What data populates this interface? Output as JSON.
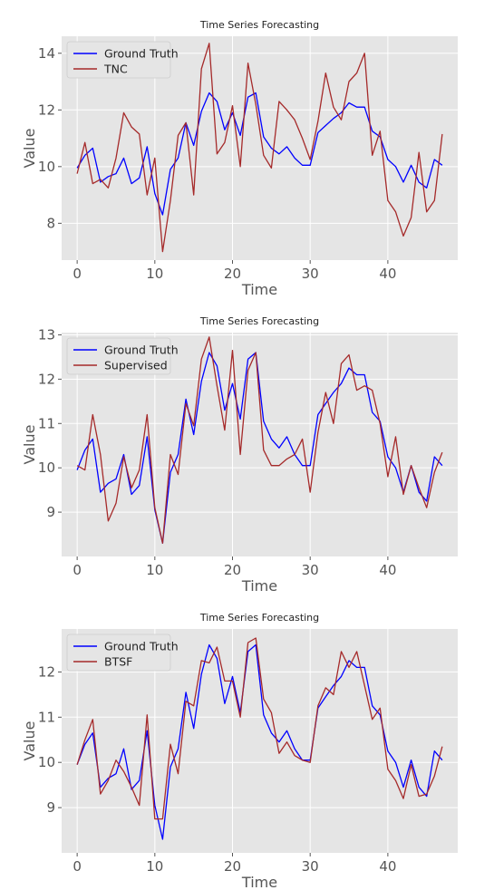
{
  "colors": {
    "ground_truth": "#0000ff",
    "prediction": "#a52a2a",
    "plot_bg": "#e5e5e5",
    "grid": "#ffffff"
  },
  "chart_data": [
    {
      "type": "line",
      "title": "Time Series Forecasting",
      "xlabel": "Time",
      "ylabel": "Value",
      "xlim": [
        -2,
        49
      ],
      "ylim": [
        6.7,
        14.6
      ],
      "xticks": [
        0,
        10,
        20,
        30,
        40
      ],
      "yticks": [
        8,
        10,
        12,
        14
      ],
      "grid": true,
      "legend": "top-left",
      "x": [
        0,
        1,
        2,
        3,
        4,
        5,
        6,
        7,
        8,
        9,
        10,
        11,
        12,
        13,
        14,
        15,
        16,
        17,
        18,
        19,
        20,
        21,
        22,
        23,
        24,
        25,
        26,
        27,
        28,
        29,
        30,
        31,
        32,
        33,
        34,
        35,
        36,
        37,
        38,
        39,
        40,
        41,
        42,
        43,
        44,
        45,
        46,
        47
      ],
      "series": [
        {
          "name": "Ground Truth",
          "color": "#0000ff",
          "values": [
            9.95,
            10.4,
            10.65,
            9.45,
            9.65,
            9.75,
            10.3,
            9.4,
            9.6,
            10.7,
            9.05,
            8.3,
            9.9,
            10.3,
            11.55,
            10.75,
            11.95,
            12.6,
            12.3,
            11.3,
            11.9,
            11.1,
            12.45,
            12.6,
            11.05,
            10.65,
            10.45,
            10.7,
            10.3,
            10.05,
            10.05,
            11.2,
            11.45,
            11.7,
            11.9,
            12.25,
            12.1,
            12.1,
            11.25,
            11.05,
            10.25,
            10.0,
            9.45,
            10.05,
            9.45,
            9.25,
            10.25,
            10.05
          ]
        },
        {
          "name": "TNC",
          "color": "#a52a2a",
          "values": [
            9.75,
            10.85,
            9.4,
            9.55,
            9.25,
            10.3,
            11.9,
            11.4,
            11.15,
            9.0,
            10.3,
            7.0,
            8.8,
            11.1,
            11.55,
            9.0,
            13.45,
            14.35,
            10.45,
            10.85,
            12.15,
            10.0,
            13.65,
            12.2,
            10.4,
            9.95,
            12.3,
            12.0,
            11.65,
            11.0,
            10.25,
            11.6,
            13.3,
            12.1,
            11.65,
            13.0,
            13.3,
            14.0,
            10.4,
            11.25,
            8.8,
            8.4,
            7.55,
            8.2,
            10.5,
            8.4,
            8.8,
            11.15
          ]
        }
      ]
    },
    {
      "type": "line",
      "title": "Time Series Forecasting",
      "xlabel": "Time",
      "ylabel": "Value",
      "xlim": [
        -2,
        49
      ],
      "ylim": [
        8.0,
        13.05
      ],
      "xticks": [
        0,
        10,
        20,
        30,
        40
      ],
      "yticks": [
        9,
        10,
        11,
        12,
        13
      ],
      "grid": true,
      "legend": "top-left",
      "x": [
        0,
        1,
        2,
        3,
        4,
        5,
        6,
        7,
        8,
        9,
        10,
        11,
        12,
        13,
        14,
        15,
        16,
        17,
        18,
        19,
        20,
        21,
        22,
        23,
        24,
        25,
        26,
        27,
        28,
        29,
        30,
        31,
        32,
        33,
        34,
        35,
        36,
        37,
        38,
        39,
        40,
        41,
        42,
        43,
        44,
        45,
        46,
        47
      ],
      "series": [
        {
          "name": "Ground Truth",
          "color": "#0000ff",
          "values": [
            9.95,
            10.4,
            10.65,
            9.45,
            9.65,
            9.75,
            10.3,
            9.4,
            9.6,
            10.7,
            9.05,
            8.3,
            9.9,
            10.3,
            11.55,
            10.75,
            11.95,
            12.6,
            12.3,
            11.3,
            11.9,
            11.1,
            12.45,
            12.6,
            11.05,
            10.65,
            10.45,
            10.7,
            10.3,
            10.05,
            10.05,
            11.2,
            11.45,
            11.7,
            11.9,
            12.25,
            12.1,
            12.1,
            11.25,
            11.05,
            10.25,
            10.0,
            9.45,
            10.05,
            9.45,
            9.25,
            10.25,
            10.05
          ]
        },
        {
          "name": "Supervised",
          "color": "#a52a2a",
          "values": [
            10.05,
            9.95,
            11.2,
            10.3,
            8.8,
            9.2,
            10.25,
            9.55,
            9.95,
            11.2,
            9.1,
            8.3,
            10.3,
            9.85,
            11.45,
            10.95,
            12.45,
            12.95,
            11.85,
            10.85,
            12.65,
            10.3,
            12.2,
            12.6,
            10.4,
            10.05,
            10.05,
            10.2,
            10.3,
            10.65,
            9.45,
            10.8,
            11.7,
            11.0,
            12.35,
            12.55,
            11.75,
            11.85,
            11.75,
            11.0,
            9.8,
            10.7,
            9.4,
            10.05,
            9.55,
            9.1,
            9.9,
            10.35
          ]
        }
      ]
    },
    {
      "type": "line",
      "title": "Time Series Forecasting",
      "xlabel": "Time",
      "ylabel": "Value",
      "xlim": [
        -2,
        49
      ],
      "ylim": [
        8.0,
        12.95
      ],
      "xticks": [
        0,
        10,
        20,
        30,
        40
      ],
      "yticks": [
        9,
        10,
        11,
        12
      ],
      "grid": true,
      "legend": "top-left",
      "x": [
        0,
        1,
        2,
        3,
        4,
        5,
        6,
        7,
        8,
        9,
        10,
        11,
        12,
        13,
        14,
        15,
        16,
        17,
        18,
        19,
        20,
        21,
        22,
        23,
        24,
        25,
        26,
        27,
        28,
        29,
        30,
        31,
        32,
        33,
        34,
        35,
        36,
        37,
        38,
        39,
        40,
        41,
        42,
        43,
        44,
        45,
        46,
        47
      ],
      "series": [
        {
          "name": "Ground Truth",
          "color": "#0000ff",
          "values": [
            9.95,
            10.4,
            10.65,
            9.45,
            9.65,
            9.75,
            10.3,
            9.4,
            9.6,
            10.7,
            9.05,
            8.3,
            9.9,
            10.3,
            11.55,
            10.75,
            11.95,
            12.6,
            12.3,
            11.3,
            11.9,
            11.1,
            12.45,
            12.6,
            11.05,
            10.65,
            10.45,
            10.7,
            10.3,
            10.05,
            10.05,
            11.2,
            11.45,
            11.7,
            11.9,
            12.25,
            12.1,
            12.1,
            11.25,
            11.05,
            10.25,
            10.0,
            9.45,
            10.05,
            9.45,
            9.25,
            10.25,
            10.05
          ]
        },
        {
          "name": "BTSF",
          "color": "#a52a2a",
          "values": [
            9.95,
            10.5,
            10.95,
            9.3,
            9.6,
            10.05,
            9.8,
            9.45,
            9.05,
            11.05,
            8.75,
            8.75,
            10.4,
            9.75,
            11.35,
            11.25,
            12.25,
            12.2,
            12.55,
            11.8,
            11.8,
            11.0,
            12.65,
            12.75,
            11.4,
            11.1,
            10.2,
            10.45,
            10.15,
            10.05,
            10.0,
            11.25,
            11.65,
            11.5,
            12.45,
            12.1,
            12.45,
            11.7,
            10.95,
            11.2,
            9.85,
            9.6,
            9.2,
            9.95,
            9.25,
            9.3,
            9.7,
            10.35
          ]
        }
      ]
    }
  ]
}
